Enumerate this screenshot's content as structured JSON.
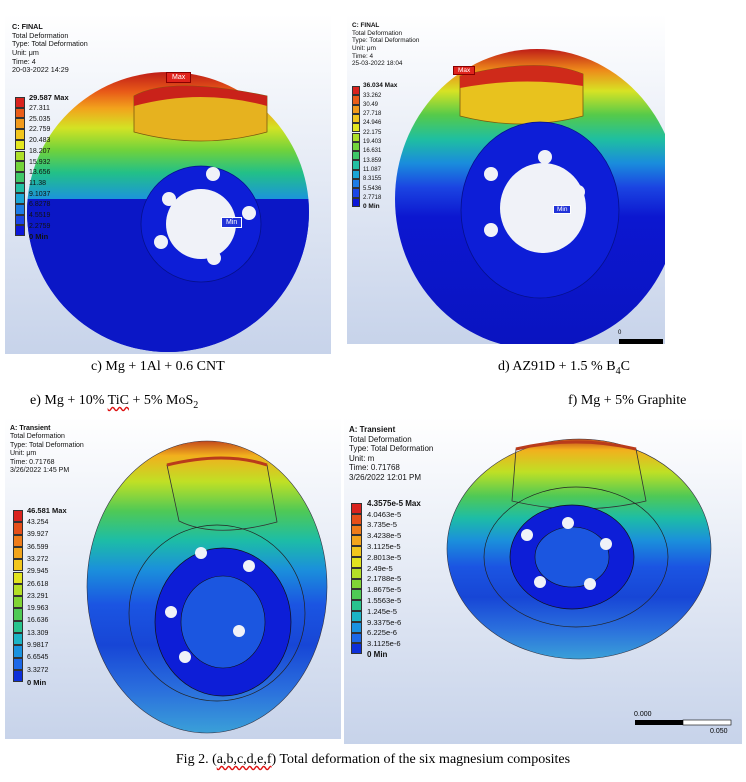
{
  "panels": [
    {
      "id": "c",
      "header": [
        "C: FINAL",
        "Total Deformation",
        "Type: Total Deformation",
        "Unit: μm",
        "Time: 4",
        "20-03-2022 14:29"
      ],
      "legend": [
        "29.587 Max",
        "27.311",
        "25.035",
        "22.759",
        "20.483",
        "18.207",
        "15.932",
        "13.656",
        "11.38",
        "9.1037",
        "6.8278",
        "4.5519",
        "2.2759",
        "0 Min"
      ],
      "max_tag": "Max",
      "min_tag": "Min"
    },
    {
      "id": "d",
      "header": [
        "C: FINAL",
        "Total Deformation",
        "Type: Total Deformation",
        "Unit: μm",
        "Time: 4",
        "25-03-2022 18:04"
      ],
      "legend": [
        "36.034 Max",
        "33.262",
        "30.49",
        "27.718",
        "24.946",
        "22.175",
        "19.403",
        "16.631",
        "13.859",
        "11.087",
        "8.3155",
        "5.5436",
        "2.7718",
        "0 Min"
      ],
      "max_tag": "Max",
      "min_tag": "Min",
      "scale_label": "0"
    },
    {
      "id": "e",
      "header": [
        "A: Transient",
        "Total Deformation",
        "Type: Total Deformation",
        "Unit: μm",
        "Time: 0.71768",
        "3/26/2022 1:45 PM"
      ],
      "legend": [
        "46.581 Max",
        "43.254",
        "39.927",
        "36.599",
        "33.272",
        "29.945",
        "26.618",
        "23.291",
        "19.963",
        "16.636",
        "13.309",
        "9.9817",
        "6.6545",
        "3.3272",
        "0 Min"
      ]
    },
    {
      "id": "f",
      "header": [
        "A: Transient",
        "Total Deformation",
        "Type: Total Deformation",
        "Unit: m",
        "Time: 0.71768",
        "3/26/2022 12:01 PM"
      ],
      "legend": [
        "4.3575e-5 Max",
        "4.0463e-5",
        "3.735e-5",
        "3.4238e-5",
        "3.1125e-5",
        "2.8013e-5",
        "2.49e-5",
        "2.1788e-5",
        "1.8675e-5",
        "1.5563e-5",
        "1.245e-5",
        "9.3375e-6",
        "6.225e-6",
        "3.1125e-6",
        "0 Min"
      ],
      "scale_labels": [
        "0.000",
        "0.050"
      ]
    }
  ],
  "captions": {
    "c": {
      "text": "c)  Mg + 1Al + 0.6 CNT"
    },
    "d": {
      "pre": "d) AZ91D + 1.5 % B",
      "sub": "4",
      "post": "C"
    },
    "e": {
      "pre": "e) Mg + 10% ",
      "mark": "TiC",
      "mid": " + 5% MoS",
      "sub": "2"
    },
    "f": {
      "text": "f) Mg + 5% Graphite"
    }
  },
  "figure_caption": {
    "pre": "Fig 2. (",
    "mark": "a,b,c,d,e,f",
    "post": ") Total deformation of the six magnesium composites"
  },
  "colors": {
    "legend": [
      "#d9231e",
      "#eb5d18",
      "#f29a1b",
      "#f2c51d",
      "#e3e61f",
      "#aee029",
      "#73d43a",
      "#3ec868",
      "#22c0a3",
      "#1aa6d6",
      "#1d7ce6",
      "#1b46e6",
      "#0c17d8"
    ],
    "legend15": [
      "#d9231e",
      "#e64f19",
      "#ef7c1a",
      "#f3a51c",
      "#f2c71d",
      "#e2e41f",
      "#b4df27",
      "#81d535",
      "#4fca55",
      "#28c38e",
      "#1cb4c6",
      "#1a92e0",
      "#1c68e8",
      "#0d2fd9"
    ]
  }
}
